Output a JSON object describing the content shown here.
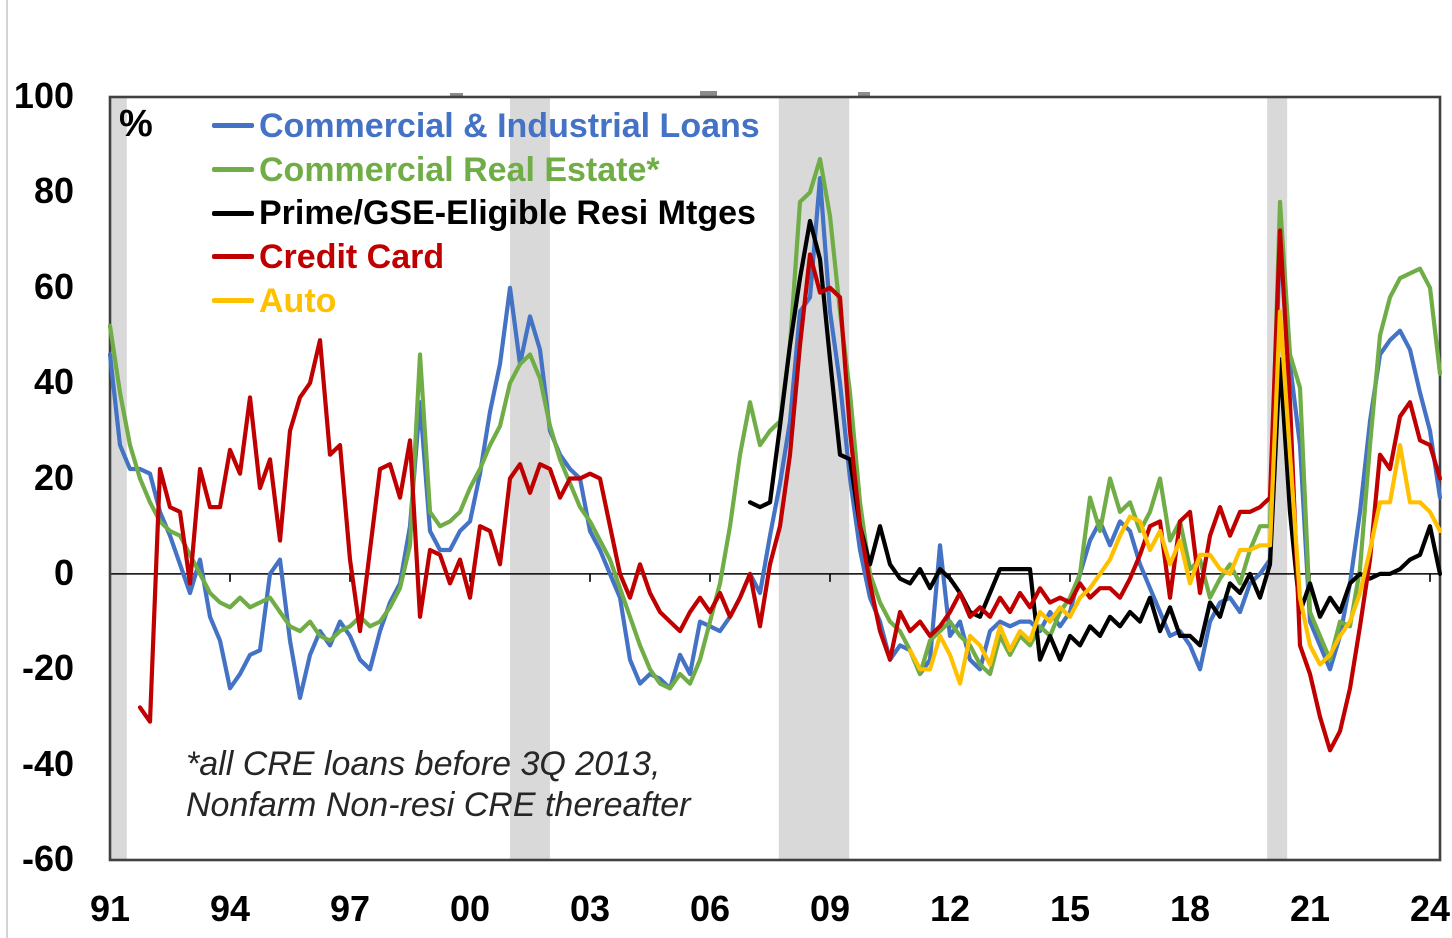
{
  "y_axis_unit": "%",
  "footnote": {
    "line1": "*all CRE loans before 3Q 2013,",
    "line2": "Nonfarm Non-resi CRE thereafter"
  },
  "chart_data": {
    "type": "line",
    "title": "",
    "xlabel": "",
    "ylabel": "%",
    "ylim": [
      -60,
      100
    ],
    "xlim": [
      1991,
      2024.25
    ],
    "grid": false,
    "legend_position": "top-left-inside",
    "y_tick_labels": [
      "100",
      "80",
      "60",
      "40",
      "20",
      "0",
      "-20",
      "-40",
      "-60"
    ],
    "y_tick_values": [
      100,
      80,
      60,
      40,
      20,
      0,
      -20,
      -40,
      -60
    ],
    "x_tick_labels": [
      "91",
      "94",
      "97",
      "00",
      "03",
      "06",
      "09",
      "12",
      "15",
      "18",
      "21",
      "24"
    ],
    "x_tick_values": [
      1991,
      1994,
      1997,
      2000,
      2003,
      2006,
      2009,
      2012,
      2015,
      2018,
      2021,
      2024
    ],
    "recession_bands": [
      [
        1991.02,
        1991.42
      ],
      [
        2001.0,
        2002.0
      ],
      [
        2007.72,
        2009.48
      ],
      [
        2019.93,
        2020.43
      ]
    ],
    "band_color": "#d9d9d9",
    "series": [
      {
        "name": "Commercial & Industrial Loans",
        "color": "#4472C4",
        "start": 1991.0,
        "step": 0.25,
        "values": [
          46,
          27,
          22,
          22,
          21,
          13,
          8,
          2,
          -4,
          3,
          -9,
          -14,
          -24,
          -21,
          -17,
          -16,
          0,
          3,
          -14,
          -26,
          -17,
          -12,
          -15,
          -10,
          -13,
          -18,
          -20,
          -12,
          -6,
          -2,
          10,
          36,
          9,
          5,
          5,
          9,
          11,
          21,
          34,
          44,
          60,
          44,
          54,
          47,
          30,
          25,
          22,
          20,
          9,
          5,
          0,
          -5,
          -18,
          -23,
          -21,
          -22,
          -24,
          -17,
          -21,
          -10,
          -11,
          -12,
          -9,
          -5,
          0,
          -4,
          8,
          19,
          32,
          55,
          58,
          83,
          55,
          40,
          20,
          5,
          -5,
          -10,
          -18,
          -15,
          -16,
          -21,
          -18,
          6,
          -13,
          -10,
          -18,
          -20,
          -12,
          -10,
          -11,
          -10,
          -10,
          -12,
          -8,
          -11,
          -8,
          0,
          7,
          11,
          6,
          11,
          9,
          2,
          -3,
          -8,
          -13,
          -12,
          -15,
          -20,
          -10,
          -6,
          -5,
          -8,
          -2,
          0,
          3,
          71,
          44,
          27,
          -10,
          -15,
          -20,
          -13,
          -2,
          13,
          32,
          46,
          49,
          51,
          47,
          38,
          30,
          16
        ]
      },
      {
        "name": "Commercial Real Estate*",
        "color": "#70AD47",
        "start": 1991.0,
        "step": 0.25,
        "values": [
          52,
          38,
          27,
          20,
          15,
          11,
          9,
          8,
          4,
          0,
          -4,
          -6,
          -7,
          -5,
          -7,
          -6,
          -5,
          -8,
          -11,
          -12,
          -10,
          -13,
          -14,
          -12,
          -11,
          -9,
          -11,
          -10,
          -7,
          -3,
          6,
          46,
          13,
          10,
          11,
          13,
          18,
          22,
          27,
          31,
          40,
          44,
          46,
          41,
          31,
          24,
          19,
          14,
          11,
          7,
          3,
          -3,
          -9,
          -15,
          -20,
          -23,
          -24,
          -21,
          -23,
          -18,
          -10,
          -2,
          10,
          25,
          36,
          27,
          30,
          32,
          48,
          78,
          80,
          87,
          75,
          55,
          38,
          15,
          0,
          -6,
          -10,
          -12,
          -16,
          -21,
          -14,
          -12,
          -10,
          -13,
          -15,
          -19,
          -21,
          -13,
          -17,
          -13,
          -15,
          -11,
          -13,
          -8,
          -5,
          0,
          16,
          9,
          20,
          13,
          15,
          9,
          13,
          20,
          7,
          11,
          1,
          3,
          -5,
          -1,
          2,
          -2,
          5,
          10,
          10,
          78,
          46,
          39,
          -8,
          -13,
          -18,
          -10,
          -11,
          1,
          27,
          50,
          58,
          62,
          63,
          64,
          60,
          42
        ]
      },
      {
        "name": "Prime/GSE-Eligible Resi Mtges",
        "color": "#000000",
        "start": 2007.0,
        "step": 0.25,
        "values": [
          15,
          14,
          15,
          31,
          48,
          62,
          74,
          66,
          45,
          25,
          24,
          10,
          2,
          10,
          2,
          -1,
          -2,
          1,
          -3,
          1,
          -1,
          -4,
          -8,
          -9,
          -4,
          1,
          1,
          1,
          1,
          -18,
          -13,
          -18,
          -13,
          -15,
          -11,
          -13,
          -9,
          -11,
          -8,
          -10,
          -5,
          -12,
          -7,
          -13,
          -13,
          -15,
          -6,
          -9,
          -2,
          -4,
          0,
          -5,
          2,
          45,
          13,
          -8,
          -2,
          -9,
          -5,
          -8,
          -2,
          0,
          -1,
          0,
          0,
          1,
          3,
          4,
          10,
          0
        ]
      },
      {
        "name": "Credit Card",
        "color": "#C00000",
        "start": 1991.75,
        "step": 0.25,
        "values": [
          -28,
          -31,
          22,
          14,
          13,
          -2,
          22,
          14,
          14,
          26,
          21,
          37,
          18,
          24,
          7,
          30,
          37,
          40,
          49,
          25,
          27,
          3,
          -12,
          5,
          22,
          23,
          16,
          28,
          -9,
          5,
          4,
          -2,
          3,
          -5,
          10,
          9,
          2,
          20,
          23,
          17,
          23,
          22,
          16,
          20,
          20,
          21,
          20,
          10,
          0,
          -5,
          2,
          -4,
          -8,
          -10,
          -12,
          -8,
          -5,
          -8,
          -4,
          -9,
          -5,
          0,
          -11,
          2,
          10,
          25,
          48,
          67,
          59,
          60,
          58,
          30,
          10,
          -2,
          -12,
          -18,
          -8,
          -12,
          -10,
          -13,
          -11,
          -8,
          -4,
          -9,
          -7,
          -9,
          -5,
          -8,
          -4,
          -7,
          -3,
          -6,
          -5,
          -6,
          -2,
          -5,
          -3,
          -3,
          -5,
          -1,
          4,
          10,
          11,
          -5,
          11,
          13,
          -4,
          8,
          14,
          8,
          13,
          13,
          14,
          16,
          72,
          36,
          -15,
          -21,
          -30,
          -37,
          -33,
          -24,
          -11,
          3,
          25,
          22,
          33,
          36,
          28,
          27,
          20
        ]
      },
      {
        "name": "Auto",
        "color": "#FFC000",
        "start": 2011.0,
        "step": 0.25,
        "values": [
          -16,
          -20,
          -20,
          -13,
          -17,
          -23,
          -13,
          -15,
          -19,
          -11,
          -16,
          -12,
          -14,
          -8,
          -10,
          -7,
          -9,
          -5,
          -3,
          0,
          3,
          8,
          12,
          11,
          5,
          9,
          2,
          7,
          -2,
          4,
          4,
          1,
          0,
          5,
          5,
          6,
          6,
          55,
          25,
          -5,
          -15,
          -19,
          -17,
          -13,
          -10,
          -4,
          5,
          15,
          15,
          27,
          15,
          15,
          13,
          9
        ]
      }
    ]
  }
}
